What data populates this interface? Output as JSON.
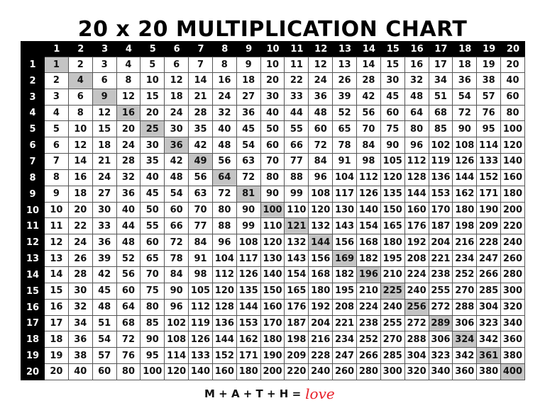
{
  "title": "20 x 20 MULTIPLICATION CHART",
  "colors": {
    "header_bg": "#000000",
    "diagonal": "#c4c4c4",
    "love": "#e8202a"
  },
  "table": {
    "col_headers": [
      1,
      2,
      3,
      4,
      5,
      6,
      7,
      8,
      9,
      10,
      11,
      12,
      13,
      14,
      15,
      16,
      17,
      18,
      19,
      20
    ],
    "row_headers": [
      1,
      2,
      3,
      4,
      5,
      6,
      7,
      8,
      9,
      10,
      11,
      12,
      13,
      14,
      15,
      16,
      17,
      18,
      19,
      20
    ],
    "rows": [
      [
        1,
        2,
        3,
        4,
        5,
        6,
        7,
        8,
        9,
        10,
        11,
        12,
        13,
        14,
        15,
        16,
        17,
        18,
        19,
        20
      ],
      [
        2,
        4,
        6,
        8,
        10,
        12,
        14,
        16,
        18,
        20,
        22,
        24,
        26,
        28,
        30,
        32,
        34,
        36,
        38,
        40
      ],
      [
        3,
        6,
        9,
        12,
        15,
        18,
        21,
        24,
        27,
        30,
        33,
        36,
        39,
        42,
        45,
        48,
        51,
        54,
        57,
        60
      ],
      [
        4,
        8,
        12,
        16,
        20,
        24,
        28,
        32,
        36,
        40,
        44,
        48,
        52,
        56,
        60,
        64,
        68,
        72,
        76,
        80
      ],
      [
        5,
        10,
        15,
        20,
        25,
        30,
        35,
        40,
        45,
        50,
        55,
        60,
        65,
        70,
        75,
        80,
        85,
        90,
        95,
        100
      ],
      [
        6,
        12,
        18,
        24,
        30,
        36,
        42,
        48,
        54,
        60,
        66,
        72,
        78,
        84,
        90,
        96,
        102,
        108,
        114,
        120
      ],
      [
        7,
        14,
        21,
        28,
        35,
        42,
        49,
        56,
        63,
        70,
        77,
        84,
        91,
        98,
        105,
        112,
        119,
        126,
        133,
        140
      ],
      [
        8,
        16,
        24,
        32,
        40,
        48,
        56,
        64,
        72,
        80,
        88,
        96,
        104,
        112,
        120,
        128,
        136,
        144,
        152,
        160
      ],
      [
        9,
        18,
        27,
        36,
        45,
        54,
        63,
        72,
        81,
        90,
        99,
        108,
        117,
        126,
        135,
        144,
        153,
        162,
        171,
        180
      ],
      [
        10,
        20,
        30,
        40,
        50,
        60,
        70,
        80,
        90,
        100,
        110,
        120,
        130,
        140,
        150,
        160,
        170,
        180,
        190,
        200
      ],
      [
        11,
        22,
        33,
        44,
        55,
        66,
        77,
        88,
        99,
        110,
        121,
        132,
        143,
        154,
        165,
        176,
        187,
        198,
        209,
        220
      ],
      [
        12,
        24,
        36,
        48,
        60,
        72,
        84,
        96,
        108,
        120,
        132,
        144,
        156,
        168,
        180,
        192,
        204,
        216,
        228,
        240
      ],
      [
        13,
        26,
        39,
        52,
        65,
        78,
        91,
        104,
        117,
        130,
        143,
        156,
        169,
        182,
        195,
        208,
        221,
        234,
        247,
        260
      ],
      [
        14,
        28,
        42,
        56,
        70,
        84,
        98,
        112,
        126,
        140,
        154,
        168,
        182,
        196,
        210,
        224,
        238,
        252,
        266,
        280
      ],
      [
        15,
        30,
        45,
        60,
        75,
        90,
        105,
        120,
        135,
        150,
        165,
        180,
        195,
        210,
        225,
        240,
        255,
        270,
        285,
        300
      ],
      [
        16,
        32,
        48,
        64,
        80,
        96,
        112,
        128,
        144,
        160,
        176,
        192,
        208,
        224,
        240,
        256,
        272,
        288,
        304,
        320
      ],
      [
        17,
        34,
        51,
        68,
        85,
        102,
        119,
        136,
        153,
        170,
        187,
        204,
        221,
        238,
        255,
        272,
        289,
        306,
        323,
        340
      ],
      [
        18,
        36,
        54,
        72,
        90,
        108,
        126,
        144,
        162,
        180,
        198,
        216,
        234,
        252,
        270,
        288,
        306,
        324,
        342,
        360
      ],
      [
        19,
        38,
        57,
        76,
        95,
        114,
        133,
        152,
        171,
        190,
        209,
        228,
        247,
        266,
        285,
        304,
        323,
        342,
        361,
        380
      ],
      [
        20,
        40,
        60,
        80,
        100,
        120,
        140,
        160,
        180,
        200,
        220,
        240,
        260,
        280,
        300,
        320,
        340,
        360,
        380,
        400
      ]
    ]
  },
  "footer": {
    "text": "M + A + T + H =",
    "love": "love"
  }
}
